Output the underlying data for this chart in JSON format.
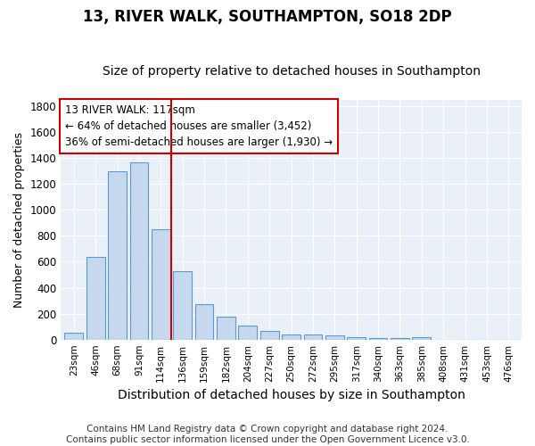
{
  "title": "13, RIVER WALK, SOUTHAMPTON, SO18 2DP",
  "subtitle": "Size of property relative to detached houses in Southampton",
  "xlabel": "Distribution of detached houses by size in Southampton",
  "ylabel": "Number of detached properties",
  "categories": [
    "23sqm",
    "46sqm",
    "68sqm",
    "91sqm",
    "114sqm",
    "136sqm",
    "159sqm",
    "182sqm",
    "204sqm",
    "227sqm",
    "250sqm",
    "272sqm",
    "295sqm",
    "317sqm",
    "340sqm",
    "363sqm",
    "385sqm",
    "408sqm",
    "431sqm",
    "453sqm",
    "476sqm"
  ],
  "values": [
    50,
    640,
    1300,
    1370,
    850,
    525,
    275,
    175,
    105,
    65,
    40,
    37,
    30,
    20,
    15,
    10,
    20,
    0,
    0,
    0,
    0
  ],
  "bar_color": "#c5d8ed",
  "bar_edge_color": "#5b9bd5",
  "property_line_x": 4.5,
  "annotation_line1": "13 RIVER WALK: 117sqm",
  "annotation_line2": "← 64% of detached houses are smaller (3,452)",
  "annotation_line3": "36% of semi-detached houses are larger (1,930) →",
  "annotation_box_color": "#ffffff",
  "annotation_box_edge_color": "#cc0000",
  "vline_color": "#cc0000",
  "ylim": [
    0,
    1850
  ],
  "yticks": [
    0,
    200,
    400,
    600,
    800,
    1000,
    1200,
    1400,
    1600,
    1800
  ],
  "footer_line1": "Contains HM Land Registry data © Crown copyright and database right 2024.",
  "footer_line2": "Contains public sector information licensed under the Open Government Licence v3.0.",
  "bg_color": "#eaf0f8",
  "title_fontsize": 12,
  "subtitle_fontsize": 10,
  "xlabel_fontsize": 10,
  "ylabel_fontsize": 9,
  "footer_fontsize": 7.5,
  "annotation_fontsize": 8.5
}
